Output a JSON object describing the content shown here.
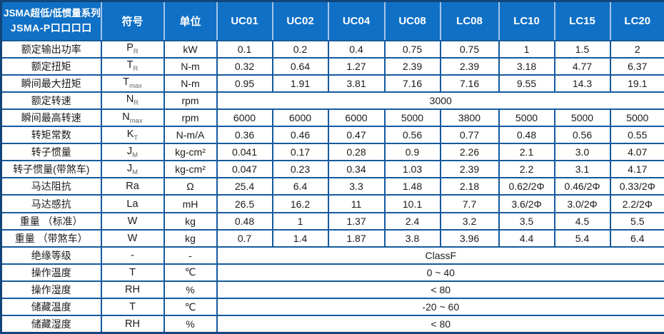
{
  "colors": {
    "header_bg": "#0F70C5",
    "header_text": "#FFFFFF",
    "header_divider": "#A4C3E8",
    "grid_line": "#155A9E",
    "outer_border": "#12457A",
    "body_text": "#1B1B1B"
  },
  "table": {
    "title_line1": "JSMA超低/低惯量系列",
    "title_line2": "JSMA-P口口口口",
    "col_headers": [
      "符号",
      "单位",
      "UC01",
      "UC02",
      "UC04",
      "UC08",
      "LC08",
      "LC10",
      "LC15",
      "LC20"
    ],
    "rows": [
      {
        "label": "额定输出功率",
        "sym": "P",
        "sub": "R",
        "unit": "kW",
        "values": [
          "0.1",
          "0.2",
          "0.4",
          "0.75",
          "0.75",
          "1",
          "1.5",
          "2"
        ]
      },
      {
        "label": "额定扭矩",
        "sym": "T",
        "sub": "R",
        "unit": "N-m",
        "values": [
          "0.32",
          "0.64",
          "1.27",
          "2.39",
          "2.39",
          "3.18",
          "4.77",
          "6.37"
        ]
      },
      {
        "label": "瞬间最大扭矩",
        "sym": "T",
        "sub": "max",
        "unit": "N-m",
        "values": [
          "0.95",
          "1.91",
          "3.81",
          "7.16",
          "7.16",
          "9.55",
          "14.3",
          "19.1"
        ]
      },
      {
        "label": "额定转速",
        "sym": "N",
        "sub": "R",
        "unit": "rpm",
        "merged": "3000"
      },
      {
        "label": "瞬间最高转速",
        "sym": "N",
        "sub": "max",
        "unit": "rpm",
        "values": [
          "6000",
          "6000",
          "6000",
          "5000",
          "3800",
          "5000",
          "5000",
          "5000"
        ]
      },
      {
        "label": "转矩常数",
        "sym": "K",
        "sub": "T",
        "unit": "N-m/A",
        "values": [
          "0.36",
          "0.46",
          "0.47",
          "0.56",
          "0.77",
          "0.48",
          "0.56",
          "0.55"
        ]
      },
      {
        "label": "转子惯量",
        "sym": "J",
        "sub": "M",
        "unit": "kg-cm²",
        "values": [
          "0.041",
          "0.17",
          "0.28",
          "0.9",
          "2.26",
          "2.1",
          "3.0",
          "4.07"
        ]
      },
      {
        "label": "转子惯量(带煞车)",
        "sym": "J",
        "sub": "M",
        "unit": "kg-cm²",
        "values": [
          "0.047",
          "0.23",
          "0.34",
          "1.03",
          "2.39",
          "2.2",
          "3.1",
          "4.17"
        ]
      },
      {
        "label": "马达阻抗",
        "sym": "Ra",
        "sub": "",
        "unit": "Ω",
        "values": [
          "25.4",
          "6.4",
          "3.3",
          "1.48",
          "2.18",
          "0.62/2Φ",
          "0.46/2Φ",
          "0.33/2Φ"
        ]
      },
      {
        "label": "马达感抗",
        "sym": "La",
        "sub": "",
        "unit": "mH",
        "values": [
          "26.5",
          "16.2",
          "11",
          "10.1",
          "7.7",
          "3.6/2Φ",
          "3.0/2Φ",
          "2.2/2Φ"
        ]
      },
      {
        "label": "重量 （标准）",
        "sym": "W",
        "sub": "",
        "unit": "kg",
        "values": [
          "0.48",
          "1",
          "1.37",
          "2.4",
          "3.2",
          "3.5",
          "4.5",
          "5.5"
        ]
      },
      {
        "label": "重量 （带煞车）",
        "sym": "W",
        "sub": "",
        "unit": "kg",
        "values": [
          "0.7",
          "1.4",
          "1.87",
          "3.8",
          "3.96",
          "4.4",
          "5.4",
          "6.4"
        ]
      },
      {
        "label": "绝缘等级",
        "sym": "-",
        "sub": "",
        "unit": "-",
        "merged": "ClassF"
      },
      {
        "label": "操作温度",
        "sym": "T",
        "sub": "",
        "unit": "℃",
        "merged": "0 ~ 40"
      },
      {
        "label": "操作湿度",
        "sym": "RH",
        "sub": "",
        "unit": "%",
        "merged": "< 80"
      },
      {
        "label": "储藏温度",
        "sym": "T",
        "sub": "",
        "unit": "℃",
        "merged": "-20 ~ 60"
      },
      {
        "label": "储藏湿度",
        "sym": "RH",
        "sub": "",
        "unit": "%",
        "merged": "< 80"
      }
    ]
  }
}
